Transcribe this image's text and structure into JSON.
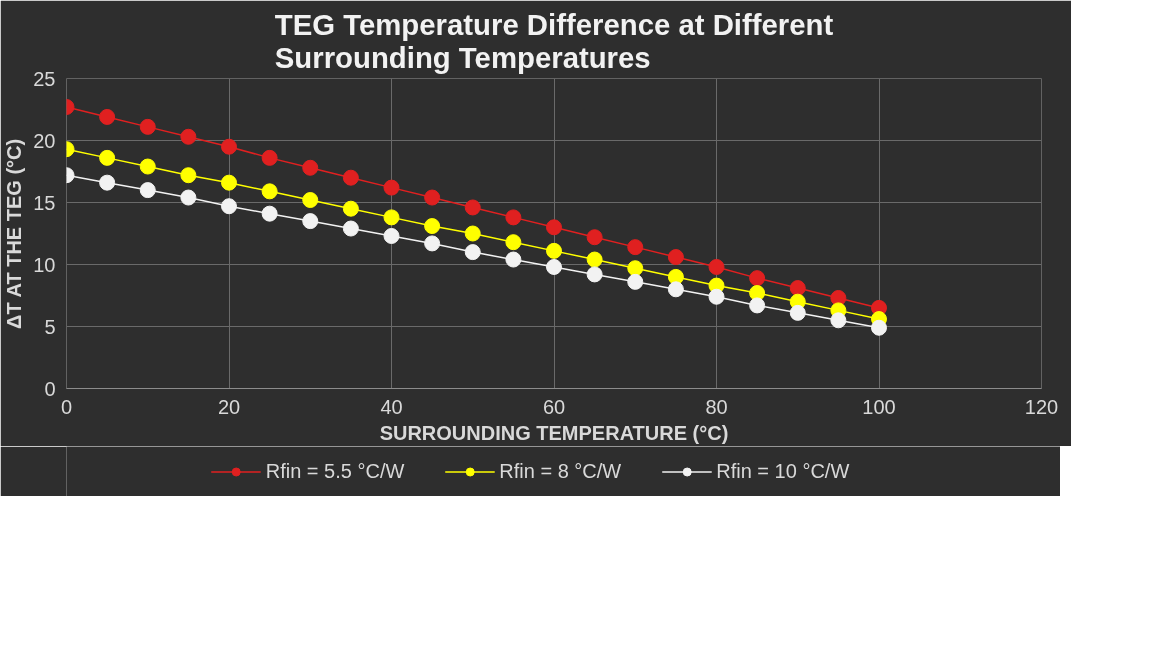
{
  "chart_data": {
    "type": "line",
    "title": "TEG Temperature Difference at Different Surrounding Temperatures",
    "xlabel": "SURROUNDING TEMPERATURE (°C)",
    "ylabel": "ΔT AT THE TEG (°C)",
    "x": [
      0,
      5,
      10,
      15,
      20,
      25,
      30,
      35,
      40,
      45,
      50,
      55,
      60,
      65,
      70,
      75,
      80,
      85,
      90,
      95,
      100
    ],
    "series": [
      {
        "name": "Rfin = 5.5 °C/W",
        "color": "#e02020",
        "values": [
          22.7,
          21.9,
          21.1,
          20.3,
          19.5,
          18.6,
          17.8,
          17.0,
          16.2,
          15.4,
          14.6,
          13.8,
          13.0,
          12.2,
          11.4,
          10.6,
          9.8,
          8.9,
          8.1,
          7.3,
          6.5
        ]
      },
      {
        "name": "Rfin = 8 °C/W",
        "color": "#ffff00",
        "values": [
          19.3,
          18.6,
          17.9,
          17.2,
          16.6,
          15.9,
          15.2,
          14.5,
          13.8,
          13.1,
          12.5,
          11.8,
          11.1,
          10.4,
          9.7,
          9.0,
          8.3,
          7.7,
          7.0,
          6.3,
          5.6
        ]
      },
      {
        "name": "Rfin = 10 °C/W",
        "color": "#f2f2f2",
        "values": [
          17.2,
          16.6,
          16.0,
          15.4,
          14.7,
          14.1,
          13.5,
          12.9,
          12.3,
          11.7,
          11.0,
          10.4,
          9.8,
          9.2,
          8.6,
          8.0,
          7.4,
          6.7,
          6.1,
          5.5,
          4.9
        ]
      }
    ],
    "xlim": [
      0,
      120
    ],
    "xticks": [
      0,
      20,
      40,
      60,
      80,
      100,
      120
    ],
    "ylim": [
      0,
      25
    ],
    "yticks": [
      0,
      5,
      10,
      15,
      20,
      25
    ],
    "grid": true,
    "legend": "bottom",
    "marker": "circle",
    "line_style": "solid"
  }
}
